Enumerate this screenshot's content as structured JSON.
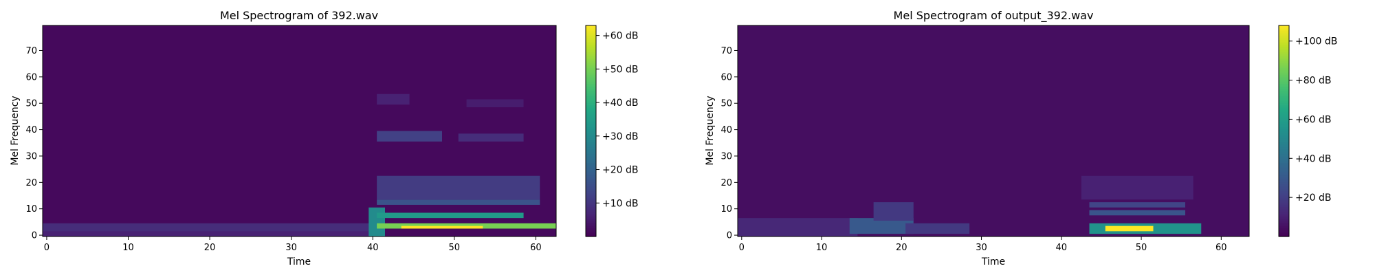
{
  "chart_data": [
    {
      "type": "heatmap",
      "title": "Mel Spectrogram of 392.wav",
      "xlabel": "Time",
      "ylabel": "Mel Frequency",
      "xlim": [
        -0.5,
        62.5
      ],
      "ylim": [
        -0.5,
        79.5
      ],
      "xticks": [
        0,
        10,
        20,
        30,
        40,
        50,
        60
      ],
      "yticks": [
        0,
        10,
        20,
        30,
        40,
        50,
        60,
        70
      ],
      "n_time_frames": 63,
      "n_mel_bins": 80,
      "colormap": "viridis",
      "colorbar": {
        "range_db": [
          0,
          63
        ],
        "ticks": [
          10,
          20,
          30,
          40,
          50,
          60
        ],
        "format": "+%d dB"
      },
      "regions": [
        {
          "label": "background",
          "time": [
            0,
            62
          ],
          "mel": [
            0,
            79
          ],
          "db": 1.5
        },
        {
          "label": "low-band hum",
          "time": [
            0,
            40
          ],
          "mel": [
            0,
            4
          ],
          "db": 8
        },
        {
          "label": "low-band hum (lower)",
          "time": [
            0,
            40
          ],
          "mel": [
            0,
            1
          ],
          "db": 6
        },
        {
          "label": "onset",
          "time": [
            40,
            41
          ],
          "mel": [
            0,
            10
          ],
          "db": 30
        },
        {
          "label": "strong fundamental",
          "time": [
            41,
            62
          ],
          "mel": [
            3,
            4
          ],
          "db": 50
        },
        {
          "label": "peak",
          "time": [
            44,
            53
          ],
          "mel": [
            3,
            3
          ],
          "db": 63
        },
        {
          "label": "harmonic band",
          "time": [
            41,
            58
          ],
          "mel": [
            7,
            8
          ],
          "db": 34
        },
        {
          "label": "harmonic band upper",
          "time": [
            41,
            60
          ],
          "mel": [
            12,
            13
          ],
          "db": 16
        },
        {
          "label": "mid band",
          "time": [
            41,
            60
          ],
          "mel": [
            14,
            22
          ],
          "db": 11
        },
        {
          "label": "formant band",
          "time": [
            41,
            48
          ],
          "mel": [
            36,
            39
          ],
          "db": 12
        },
        {
          "label": "formant band 2",
          "time": [
            51,
            58
          ],
          "mel": [
            36,
            38
          ],
          "db": 8
        },
        {
          "label": "high band",
          "time": [
            41,
            44
          ],
          "mel": [
            50,
            53
          ],
          "db": 6
        },
        {
          "label": "high band 2",
          "time": [
            52,
            58
          ],
          "mel": [
            49,
            51
          ],
          "db": 5
        }
      ]
    },
    {
      "type": "heatmap",
      "title": "Mel Spectrogram of output_392.wav",
      "xlabel": "Time",
      "ylabel": "Mel Frequency",
      "xlim": [
        -0.5,
        63.5
      ],
      "ylim": [
        -0.5,
        79.5
      ],
      "xticks": [
        0,
        10,
        20,
        30,
        40,
        50,
        60
      ],
      "yticks": [
        0,
        10,
        20,
        30,
        40,
        50,
        60,
        70
      ],
      "n_time_frames": 64,
      "n_mel_bins": 80,
      "colormap": "viridis",
      "colorbar": {
        "range_db": [
          0,
          108
        ],
        "ticks": [
          20,
          40,
          60,
          80,
          100
        ],
        "format": "+%d dB"
      },
      "regions": [
        {
          "label": "background",
          "time": [
            0,
            63
          ],
          "mel": [
            0,
            79
          ],
          "db": 4
        },
        {
          "label": "low-band",
          "time": [
            0,
            14
          ],
          "mel": [
            0,
            6
          ],
          "db": 12
        },
        {
          "label": "burst 1",
          "time": [
            14,
            21
          ],
          "mel": [
            1,
            6
          ],
          "db": 30
        },
        {
          "label": "burst 1 upper",
          "time": [
            17,
            21
          ],
          "mel": [
            6,
            12
          ],
          "db": 18
        },
        {
          "label": "burst 1 tail",
          "time": [
            21,
            28
          ],
          "mel": [
            1,
            4
          ],
          "db": 18
        },
        {
          "label": "burst 2",
          "time": [
            44,
            57
          ],
          "mel": [
            1,
            4
          ],
          "db": 55
        },
        {
          "label": "peak",
          "time": [
            46,
            51
          ],
          "mel": [
            2,
            3
          ],
          "db": 108
        },
        {
          "label": "harmonic band",
          "time": [
            44,
            55
          ],
          "mel": [
            8,
            9
          ],
          "db": 28
        },
        {
          "label": "harmonic band upper",
          "time": [
            44,
            55
          ],
          "mel": [
            11,
            12
          ],
          "db": 22
        },
        {
          "label": "mid band",
          "time": [
            43,
            56
          ],
          "mel": [
            14,
            22
          ],
          "db": 10
        }
      ]
    }
  ]
}
